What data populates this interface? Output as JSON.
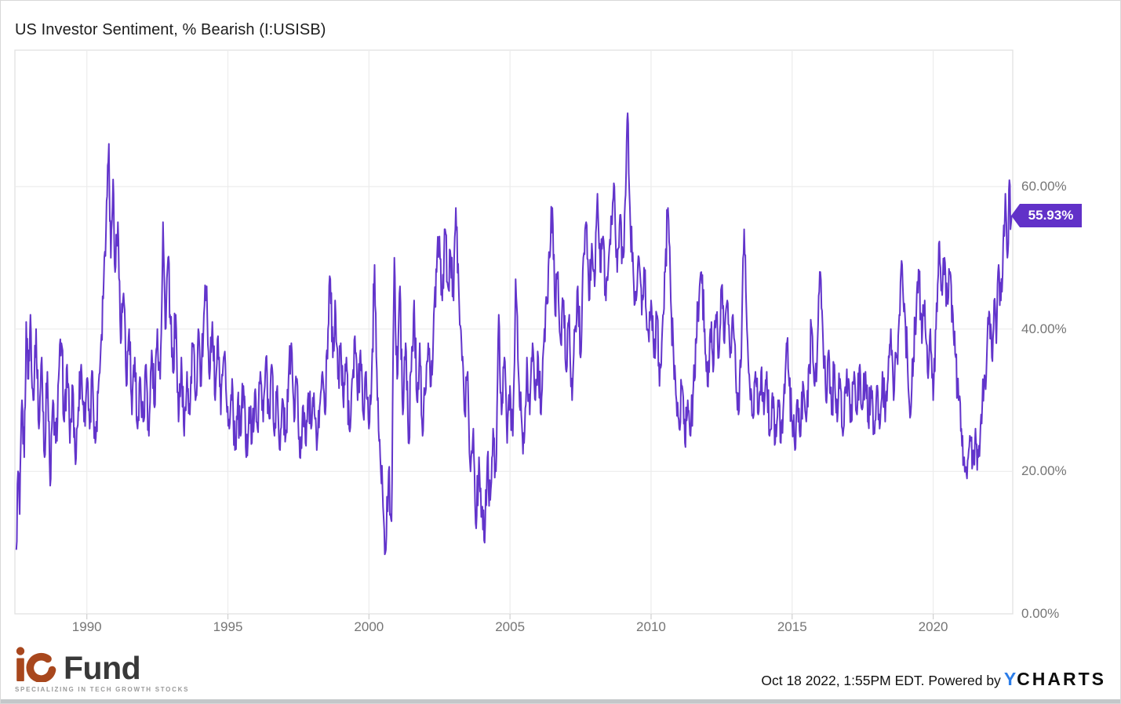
{
  "header": {
    "title": "US Investor Sentiment, % Bearish (I:USISB)"
  },
  "chart_data": {
    "type": "line",
    "title": "US Investor Sentiment, % Bearish (I:USISB)",
    "series_name": "US Investor Sentiment, % Bearish",
    "unit": "%",
    "line_color": "#6234cb",
    "grid": true,
    "legend": "none",
    "x_axis": {
      "range": [
        1987.45,
        2022.82
      ],
      "ticks": [
        1990,
        1995,
        2000,
        2005,
        2010,
        2015,
        2020
      ],
      "tick_labels": [
        "1990",
        "1995",
        "2000",
        "2005",
        "2010",
        "2015",
        "2020"
      ]
    },
    "y_axis": {
      "range": [
        0,
        79
      ],
      "tick_values": [
        0,
        20,
        40,
        60
      ],
      "tick_labels": [
        "0.00%",
        "20.00%",
        "40.00%",
        "60.00%"
      ],
      "side": "right"
    },
    "last_value": 55.93,
    "last_value_label": "55.93%",
    "anchors": [
      [
        1987.5,
        9
      ],
      [
        1987.56,
        20
      ],
      [
        1987.62,
        14
      ],
      [
        1987.7,
        30
      ],
      [
        1987.78,
        22
      ],
      [
        1987.85,
        41
      ],
      [
        1987.93,
        33
      ],
      [
        1988.0,
        42
      ],
      [
        1988.1,
        30
      ],
      [
        1988.2,
        40
      ],
      [
        1988.3,
        26
      ],
      [
        1988.4,
        36
      ],
      [
        1988.5,
        22
      ],
      [
        1988.6,
        34
      ],
      [
        1988.7,
        18
      ],
      [
        1988.8,
        30
      ],
      [
        1988.9,
        24
      ],
      [
        1989.0,
        33
      ],
      [
        1989.1,
        38
      ],
      [
        1989.2,
        27
      ],
      [
        1989.3,
        35
      ],
      [
        1989.4,
        24
      ],
      [
        1989.5,
        32
      ],
      [
        1989.6,
        21
      ],
      [
        1989.7,
        29
      ],
      [
        1989.8,
        35
      ],
      [
        1989.9,
        27
      ],
      [
        1990.0,
        33
      ],
      [
        1990.1,
        26
      ],
      [
        1990.2,
        34
      ],
      [
        1990.3,
        24
      ],
      [
        1990.4,
        31
      ],
      [
        1990.5,
        38
      ],
      [
        1990.6,
        47
      ],
      [
        1990.7,
        58
      ],
      [
        1990.78,
        66
      ],
      [
        1990.85,
        50
      ],
      [
        1990.93,
        61
      ],
      [
        1991.0,
        48
      ],
      [
        1991.1,
        55
      ],
      [
        1991.2,
        38
      ],
      [
        1991.3,
        45
      ],
      [
        1991.4,
        32
      ],
      [
        1991.5,
        40
      ],
      [
        1991.6,
        28
      ],
      [
        1991.7,
        36
      ],
      [
        1991.8,
        26
      ],
      [
        1991.9,
        33
      ],
      [
        1992.0,
        27
      ],
      [
        1992.1,
        35
      ],
      [
        1992.2,
        25
      ],
      [
        1992.3,
        37
      ],
      [
        1992.4,
        29
      ],
      [
        1992.5,
        40
      ],
      [
        1992.6,
        33
      ],
      [
        1992.7,
        55
      ],
      [
        1992.78,
        40
      ],
      [
        1992.88,
        50
      ],
      [
        1992.95,
        42
      ],
      [
        1993.05,
        34
      ],
      [
        1993.15,
        42
      ],
      [
        1993.25,
        27
      ],
      [
        1993.35,
        36
      ],
      [
        1993.45,
        25
      ],
      [
        1993.55,
        34
      ],
      [
        1993.65,
        28
      ],
      [
        1993.75,
        38
      ],
      [
        1993.85,
        30
      ],
      [
        1993.95,
        40
      ],
      [
        1994.05,
        32
      ],
      [
        1994.15,
        42
      ],
      [
        1994.25,
        46
      ],
      [
        1994.35,
        33
      ],
      [
        1994.45,
        41
      ],
      [
        1994.55,
        30
      ],
      [
        1994.65,
        39
      ],
      [
        1994.75,
        28
      ],
      [
        1994.85,
        36
      ],
      [
        1994.95,
        30
      ],
      [
        1995.05,
        26
      ],
      [
        1995.15,
        33
      ],
      [
        1995.25,
        23
      ],
      [
        1995.35,
        30
      ],
      [
        1995.45,
        25
      ],
      [
        1995.55,
        32
      ],
      [
        1995.65,
        22
      ],
      [
        1995.75,
        29
      ],
      [
        1995.85,
        24
      ],
      [
        1995.95,
        31
      ],
      [
        1996.05,
        26
      ],
      [
        1996.15,
        34
      ],
      [
        1996.25,
        27
      ],
      [
        1996.35,
        36
      ],
      [
        1996.45,
        28
      ],
      [
        1996.55,
        35
      ],
      [
        1996.65,
        25
      ],
      [
        1996.75,
        32
      ],
      [
        1996.85,
        23
      ],
      [
        1996.95,
        30
      ],
      [
        1997.05,
        25
      ],
      [
        1997.15,
        33
      ],
      [
        1997.25,
        38
      ],
      [
        1997.35,
        27
      ],
      [
        1997.45,
        33
      ],
      [
        1997.55,
        22
      ],
      [
        1997.65,
        29
      ],
      [
        1997.75,
        24
      ],
      [
        1997.85,
        31
      ],
      [
        1997.95,
        26
      ],
      [
        1998.05,
        31
      ],
      [
        1998.15,
        23
      ],
      [
        1998.25,
        29
      ],
      [
        1998.35,
        34
      ],
      [
        1998.45,
        28
      ],
      [
        1998.55,
        40
      ],
      [
        1998.63,
        47
      ],
      [
        1998.72,
        36
      ],
      [
        1998.8,
        44
      ],
      [
        1998.9,
        33
      ],
      [
        1999.0,
        38
      ],
      [
        1999.1,
        29
      ],
      [
        1999.2,
        36
      ],
      [
        1999.3,
        26
      ],
      [
        1999.4,
        33
      ],
      [
        1999.5,
        39
      ],
      [
        1999.6,
        30
      ],
      [
        1999.7,
        37
      ],
      [
        1999.8,
        28
      ],
      [
        1999.9,
        34
      ],
      [
        2000.0,
        26
      ],
      [
        2000.1,
        34
      ],
      [
        2000.2,
        49
      ],
      [
        2000.3,
        30
      ],
      [
        2000.4,
        22
      ],
      [
        2000.5,
        15
      ],
      [
        2000.6,
        9
      ],
      [
        2000.7,
        20
      ],
      [
        2000.8,
        13
      ],
      [
        2000.9,
        50
      ],
      [
        2001.0,
        33
      ],
      [
        2001.1,
        46
      ],
      [
        2001.2,
        28
      ],
      [
        2001.3,
        38
      ],
      [
        2001.4,
        24
      ],
      [
        2001.5,
        34
      ],
      [
        2001.6,
        44
      ],
      [
        2001.7,
        30
      ],
      [
        2001.8,
        38
      ],
      [
        2001.9,
        25
      ],
      [
        2002.0,
        31
      ],
      [
        2002.1,
        38
      ],
      [
        2002.2,
        32
      ],
      [
        2002.3,
        42
      ],
      [
        2002.4,
        48
      ],
      [
        2002.5,
        53
      ],
      [
        2002.6,
        44
      ],
      [
        2002.7,
        54
      ],
      [
        2002.8,
        46
      ],
      [
        2002.9,
        50
      ],
      [
        2003.0,
        44
      ],
      [
        2003.08,
        57
      ],
      [
        2003.18,
        46
      ],
      [
        2003.28,
        38
      ],
      [
        2003.4,
        28
      ],
      [
        2003.5,
        34
      ],
      [
        2003.6,
        20
      ],
      [
        2003.7,
        26
      ],
      [
        2003.8,
        12
      ],
      [
        2003.9,
        22
      ],
      [
        2004.0,
        14
      ],
      [
        2004.1,
        10
      ],
      [
        2004.2,
        22
      ],
      [
        2004.3,
        16
      ],
      [
        2004.4,
        26
      ],
      [
        2004.5,
        20
      ],
      [
        2004.6,
        42
      ],
      [
        2004.7,
        28
      ],
      [
        2004.8,
        36
      ],
      [
        2004.9,
        24
      ],
      [
        2005.0,
        32
      ],
      [
        2005.1,
        25
      ],
      [
        2005.2,
        47
      ],
      [
        2005.3,
        34
      ],
      [
        2005.4,
        28
      ],
      [
        2005.5,
        24
      ],
      [
        2005.6,
        36
      ],
      [
        2005.7,
        28
      ],
      [
        2005.8,
        38
      ],
      [
        2005.9,
        30
      ],
      [
        2006.0,
        36
      ],
      [
        2006.1,
        28
      ],
      [
        2006.2,
        38
      ],
      [
        2006.3,
        44
      ],
      [
        2006.4,
        50
      ],
      [
        2006.5,
        57
      ],
      [
        2006.6,
        42
      ],
      [
        2006.7,
        48
      ],
      [
        2006.8,
        38
      ],
      [
        2006.9,
        44
      ],
      [
        2007.0,
        34
      ],
      [
        2007.1,
        42
      ],
      [
        2007.2,
        30
      ],
      [
        2007.3,
        40
      ],
      [
        2007.4,
        46
      ],
      [
        2007.5,
        36
      ],
      [
        2007.6,
        50
      ],
      [
        2007.7,
        55
      ],
      [
        2007.8,
        44
      ],
      [
        2007.9,
        52
      ],
      [
        2008.0,
        46
      ],
      [
        2008.1,
        59
      ],
      [
        2008.2,
        48
      ],
      [
        2008.3,
        53
      ],
      [
        2008.4,
        44
      ],
      [
        2008.5,
        50
      ],
      [
        2008.6,
        55
      ],
      [
        2008.7,
        60
      ],
      [
        2008.8,
        48
      ],
      [
        2008.9,
        56
      ],
      [
        2009.0,
        50
      ],
      [
        2009.08,
        58
      ],
      [
        2009.17,
        70.3
      ],
      [
        2009.27,
        54
      ],
      [
        2009.37,
        48
      ],
      [
        2009.47,
        44
      ],
      [
        2009.57,
        50
      ],
      [
        2009.67,
        42
      ],
      [
        2009.77,
        48
      ],
      [
        2009.87,
        40
      ],
      [
        2010.0,
        44
      ],
      [
        2010.1,
        36
      ],
      [
        2010.2,
        42
      ],
      [
        2010.3,
        32
      ],
      [
        2010.4,
        40
      ],
      [
        2010.5,
        48
      ],
      [
        2010.6,
        57
      ],
      [
        2010.7,
        44
      ],
      [
        2010.8,
        36
      ],
      [
        2010.9,
        30
      ],
      [
        2011.0,
        26
      ],
      [
        2011.1,
        32
      ],
      [
        2011.2,
        24
      ],
      [
        2011.3,
        30
      ],
      [
        2011.4,
        25
      ],
      [
        2011.5,
        32
      ],
      [
        2011.6,
        38
      ],
      [
        2011.7,
        44
      ],
      [
        2011.78,
        48
      ],
      [
        2011.9,
        40
      ],
      [
        2012.0,
        32
      ],
      [
        2012.1,
        40
      ],
      [
        2012.2,
        34
      ],
      [
        2012.3,
        42
      ],
      [
        2012.4,
        36
      ],
      [
        2012.5,
        46
      ],
      [
        2012.6,
        38
      ],
      [
        2012.7,
        44
      ],
      [
        2012.8,
        36
      ],
      [
        2012.9,
        42
      ],
      [
        2013.0,
        34
      ],
      [
        2013.1,
        28
      ],
      [
        2013.2,
        36
      ],
      [
        2013.3,
        54
      ],
      [
        2013.4,
        40
      ],
      [
        2013.5,
        32
      ],
      [
        2013.6,
        28
      ],
      [
        2013.7,
        34
      ],
      [
        2013.8,
        28
      ],
      [
        2013.9,
        34
      ],
      [
        2014.0,
        28
      ],
      [
        2014.1,
        34
      ],
      [
        2014.2,
        25
      ],
      [
        2014.3,
        31
      ],
      [
        2014.4,
        24
      ],
      [
        2014.5,
        30
      ],
      [
        2014.6,
        24
      ],
      [
        2014.7,
        30
      ],
      [
        2014.8,
        38
      ],
      [
        2014.9,
        32
      ],
      [
        2015.0,
        27
      ],
      [
        2015.1,
        23
      ],
      [
        2015.2,
        30
      ],
      [
        2015.3,
        25
      ],
      [
        2015.4,
        32
      ],
      [
        2015.5,
        27
      ],
      [
        2015.6,
        35
      ],
      [
        2015.7,
        40
      ],
      [
        2015.8,
        32
      ],
      [
        2015.9,
        38
      ],
      [
        2016.0,
        48
      ],
      [
        2016.1,
        38
      ],
      [
        2016.2,
        30
      ],
      [
        2016.3,
        37
      ],
      [
        2016.4,
        28
      ],
      [
        2016.5,
        35
      ],
      [
        2016.6,
        27
      ],
      [
        2016.7,
        33
      ],
      [
        2016.8,
        25
      ],
      [
        2016.9,
        31
      ],
      [
        2017.0,
        33
      ],
      [
        2017.1,
        27
      ],
      [
        2017.2,
        34
      ],
      [
        2017.3,
        28
      ],
      [
        2017.4,
        35
      ],
      [
        2017.5,
        29
      ],
      [
        2017.6,
        34
      ],
      [
        2017.7,
        27
      ],
      [
        2017.8,
        32
      ],
      [
        2017.9,
        26
      ],
      [
        2018.0,
        32
      ],
      [
        2018.1,
        26
      ],
      [
        2018.2,
        34
      ],
      [
        2018.3,
        27
      ],
      [
        2018.4,
        33
      ],
      [
        2018.5,
        40
      ],
      [
        2018.6,
        30
      ],
      [
        2018.7,
        36
      ],
      [
        2018.8,
        42
      ],
      [
        2018.9,
        49
      ],
      [
        2019.0,
        42
      ],
      [
        2019.1,
        34
      ],
      [
        2019.2,
        28
      ],
      [
        2019.3,
        36
      ],
      [
        2019.4,
        42
      ],
      [
        2019.5,
        48
      ],
      [
        2019.6,
        38
      ],
      [
        2019.7,
        44
      ],
      [
        2019.8,
        34
      ],
      [
        2019.9,
        40
      ],
      [
        2020.0,
        30
      ],
      [
        2020.1,
        40
      ],
      [
        2020.2,
        52
      ],
      [
        2020.3,
        46
      ],
      [
        2020.4,
        50
      ],
      [
        2020.5,
        44
      ],
      [
        2020.6,
        48
      ],
      [
        2020.7,
        42
      ],
      [
        2020.8,
        36
      ],
      [
        2020.9,
        30
      ],
      [
        2021.0,
        26
      ],
      [
        2021.1,
        22
      ],
      [
        2021.2,
        19
      ],
      [
        2021.3,
        25
      ],
      [
        2021.4,
        21
      ],
      [
        2021.5,
        26
      ],
      [
        2021.6,
        22
      ],
      [
        2021.7,
        28
      ],
      [
        2021.8,
        32
      ],
      [
        2021.9,
        36
      ],
      [
        2022.0,
        42
      ],
      [
        2022.08,
        36
      ],
      [
        2022.16,
        44
      ],
      [
        2022.24,
        38
      ],
      [
        2022.32,
        49
      ],
      [
        2022.4,
        44
      ],
      [
        2022.48,
        52
      ],
      [
        2022.56,
        59
      ],
      [
        2022.63,
        50
      ],
      [
        2022.7,
        60.9
      ],
      [
        2022.74,
        54
      ],
      [
        2022.78,
        55.93
      ]
    ],
    "render": {
      "points_per_year": 52,
      "jitter": 3.6,
      "clamp": [
        5,
        70.3
      ]
    }
  },
  "badge": {
    "label": "55.93%",
    "color": "#6131c8"
  },
  "footer": {
    "brand_word": "Fund",
    "tagline": "SPECIALIZING IN TECH GROWTH STOCKS",
    "timestamp": "Oct 18 2022, 1:55PM EDT. Powered by",
    "ycharts_y": "Y",
    "ycharts_rest": "CHARTS"
  }
}
